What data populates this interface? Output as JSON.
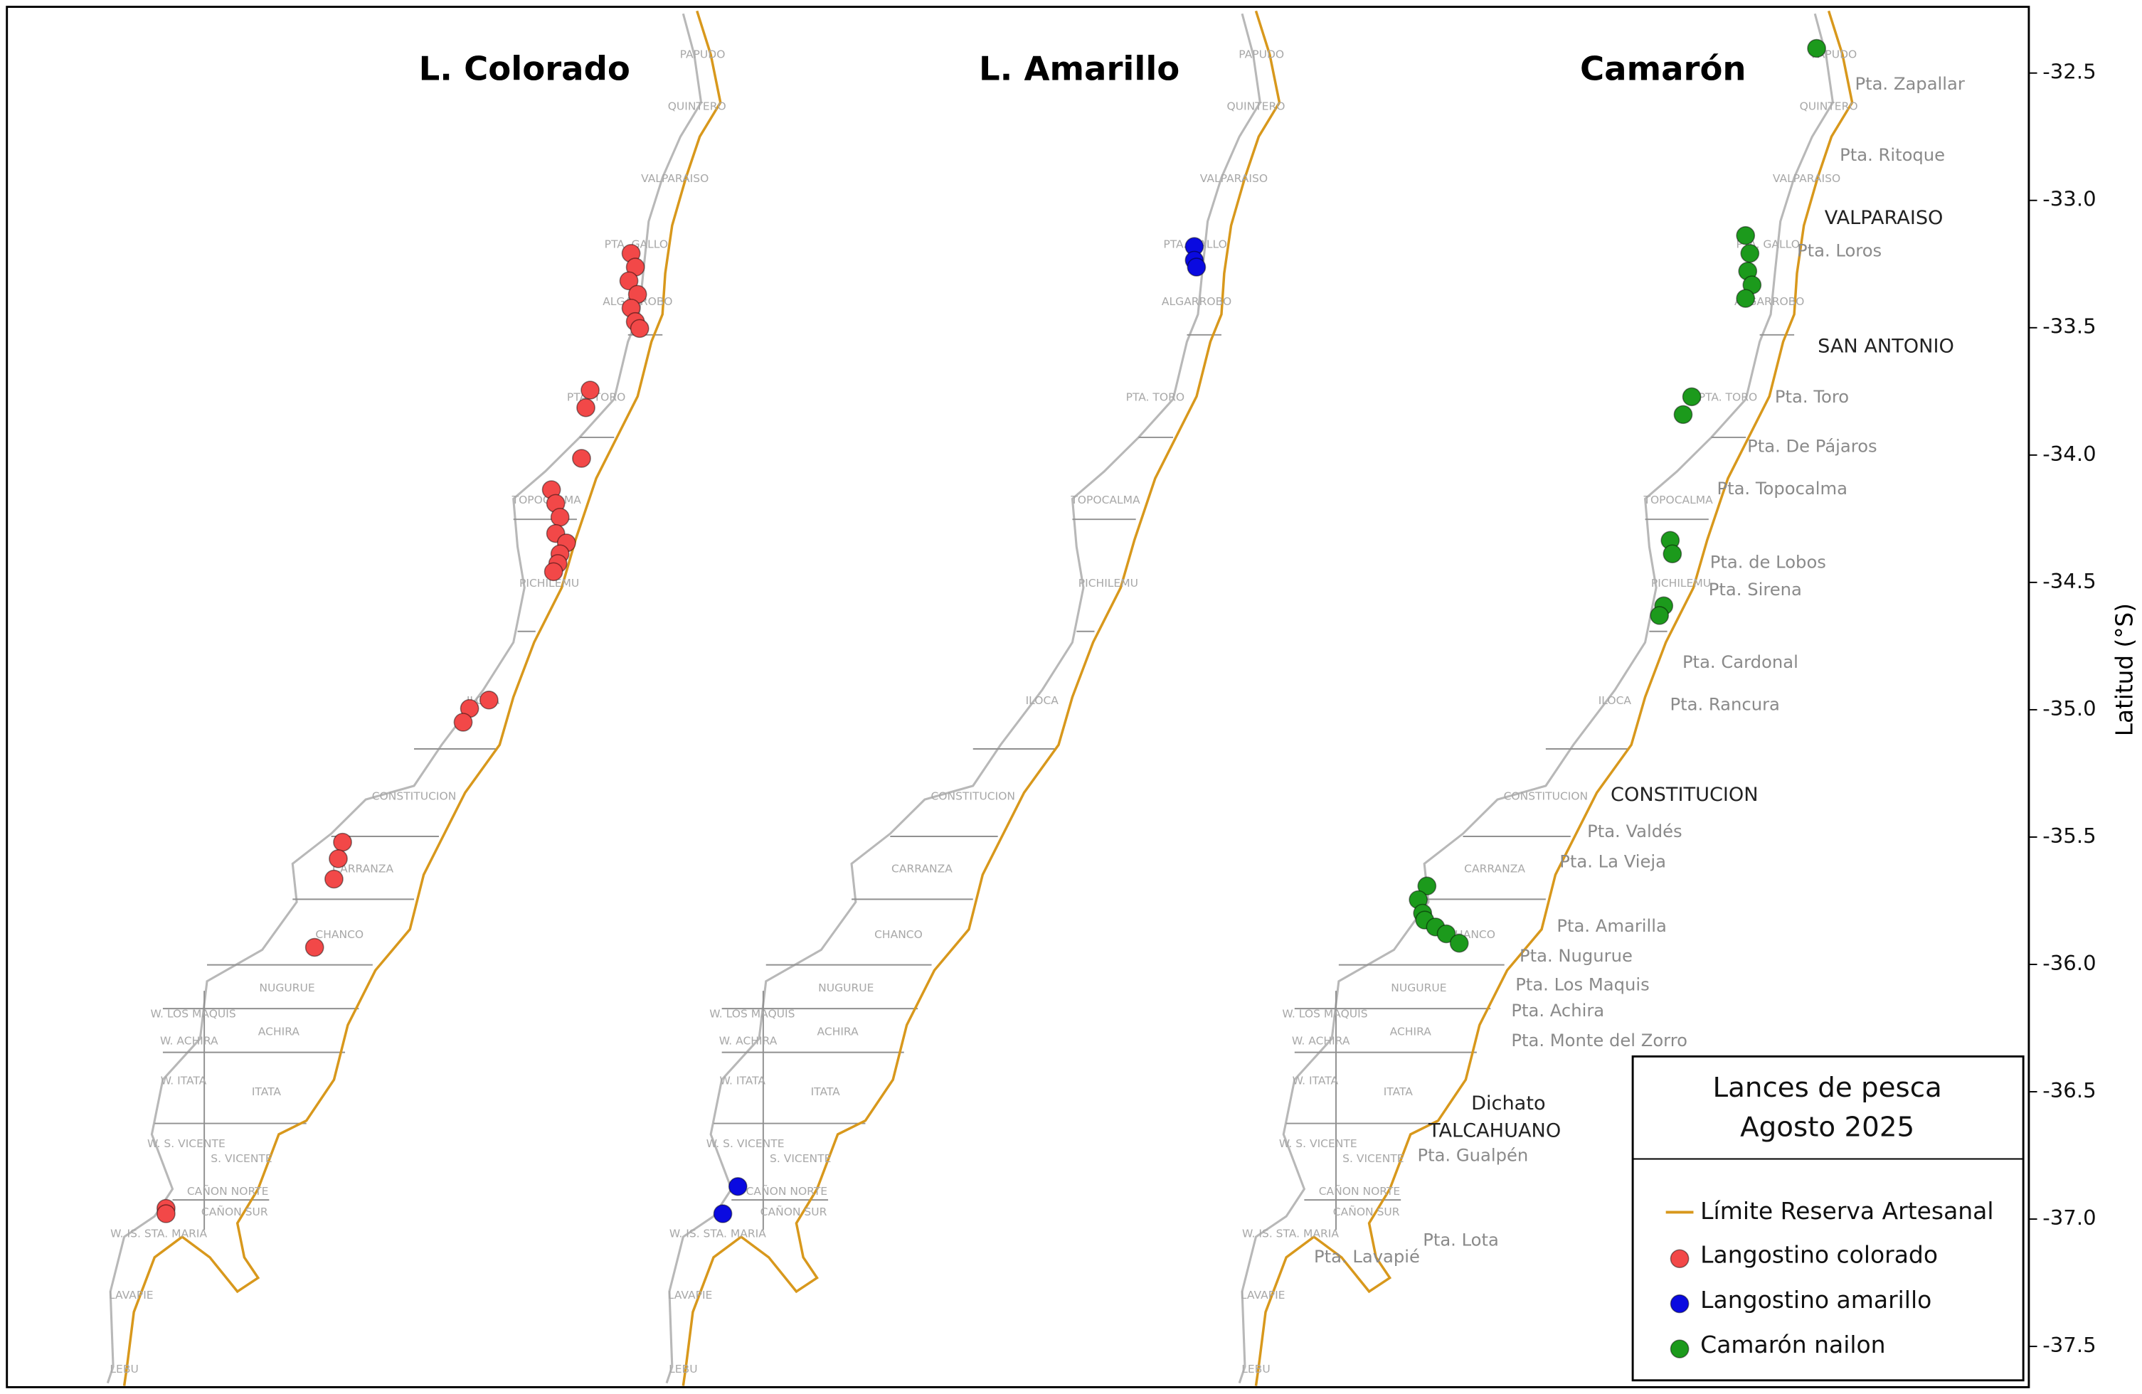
{
  "chart_data": {
    "type": "scatter",
    "ylabel": "Latitud (°S)",
    "ylim": [
      -37.66,
      -32.24
    ],
    "yticks": [
      -32.5,
      {
        "value": -33,
        "label": "-33.0"
      },
      -33.5,
      {
        "value": -34,
        "label": "-34.0"
      },
      -34.5,
      {
        "value": -35,
        "label": "-35.0"
      },
      -35.5,
      {
        "value": -36,
        "label": "-36.0"
      },
      -36.5,
      {
        "value": -37,
        "label": "-37.0"
      },
      -37.5
    ],
    "boundary": {
      "name": "Límite Reserva Artesanal",
      "color": "#d8981c"
    },
    "legend_title": [
      "Lances de pesca",
      "Agosto 2025"
    ],
    "zones": [
      "PAPUDO",
      "QUINTERO",
      "VALPARAISO",
      "PTA. GALLO",
      "ALGARROBO",
      "PTA. TORO",
      "TOPOCALMA",
      "PICHILEMU",
      "ILOCA",
      "CONSTITUCION",
      "CARRANZA",
      "CHANCO",
      "NUGURUE",
      "ACHIRA",
      "W. LOS MAQUIS",
      "W. ACHIRA",
      "ITATA",
      "W. ITATA",
      "W. S. VICENTE",
      "S. VICENTE",
      "CAÑON NORTE",
      "CAÑON SUR",
      "W. IS. STA. MARIA",
      "LAVAPIE",
      "LEBU"
    ],
    "places": [
      "Pta. Zapallar",
      "Pta. Ritoque",
      "VALPARAISO",
      "Pta. Loros",
      "SAN ANTONIO",
      "Pta. Toro",
      "Pta. De Pájaros",
      "Pta. Topocalma",
      "Pta. de Lobos",
      "Pta. Sirena",
      "Pta. Cardonal",
      "Pta. Rancura",
      "CONSTITUCION",
      "Pta. Valdés",
      "Pta. La Vieja",
      "Pta. Amarilla",
      "Pta. Nugurue",
      "Pta. Los Maquis",
      "Pta. Achira",
      "Pta. Monte del Zorro",
      "Dichato",
      "TALCAHUANO",
      "Pta. Gualpén",
      "Pta. Lota",
      "Pta. Lavapié"
    ],
    "panels": [
      {
        "title": "L. Colorado",
        "series": {
          "name": "Langostino colorado",
          "color": "#f24848",
          "x": [
            -71.81,
            -71.79,
            -71.82,
            -71.78,
            -71.81,
            -71.79,
            -71.77,
            -72.0,
            -72.02,
            -72.04,
            -72.18,
            -72.16,
            -72.14,
            -72.16,
            -72.11,
            -72.14,
            -72.15,
            -72.17,
            -72.56,
            -72.59,
            -72.47,
            -73.15,
            -73.17,
            -73.19,
            -73.28,
            -73.97,
            -73.97
          ],
          "y": [
            -33.208,
            -33.262,
            -33.316,
            -33.369,
            -33.423,
            -33.476,
            -33.503,
            -33.745,
            -33.814,
            -34.013,
            -34.136,
            -34.19,
            -34.244,
            -34.308,
            -34.345,
            -34.388,
            -34.426,
            -34.458,
            -34.995,
            -35.049,
            -34.962,
            -35.52,
            -35.585,
            -35.665,
            -35.933,
            -36.958,
            -36.979
          ]
        }
      },
      {
        "title": "L. Amarillo",
        "series": {
          "name": "Langostino amarillo",
          "color": "#0a0ae0",
          "x": [
            -71.79,
            -71.79,
            -71.78,
            -73.91,
            -73.98
          ],
          "y": [
            -33.181,
            -33.235,
            -33.262,
            -36.872,
            -36.979
          ]
        }
      },
      {
        "title": "Camarón",
        "series": {
          "name": "Camarón nailon",
          "color": "#1c9a1c",
          "x": [
            -71.56,
            -71.89,
            -71.87,
            -71.88,
            -71.86,
            -71.89,
            -72.14,
            -72.18,
            -72.24,
            -72.23,
            -72.27,
            -72.29,
            -73.37,
            -73.41,
            -73.39,
            -73.38,
            -73.33,
            -73.28,
            -73.22
          ],
          "y": [
            -32.403,
            -33.138,
            -33.208,
            -33.278,
            -33.332,
            -33.385,
            -33.771,
            -33.841,
            -34.335,
            -34.388,
            -34.592,
            -34.63,
            -35.692,
            -35.746,
            -35.799,
            -35.826,
            -35.853,
            -35.88,
            -35.917
          ]
        }
      }
    ]
  }
}
